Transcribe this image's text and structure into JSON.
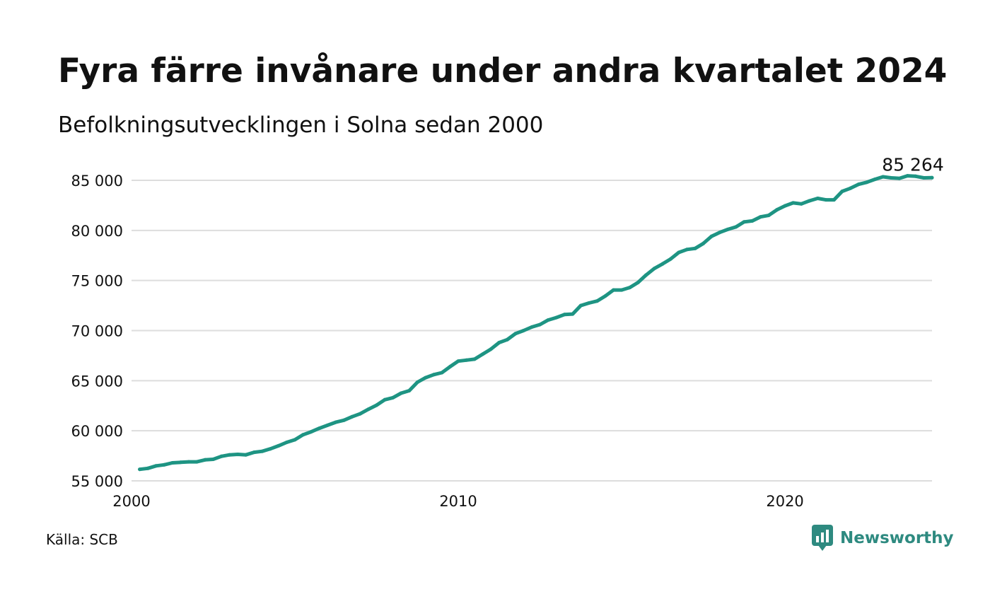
{
  "title": "Fyra färre invånare under andra kvartalet 2024",
  "subtitle": "Befolkningsutvecklingen i Solna sedan 2000",
  "source": "Källa: SCB",
  "brand": {
    "name": "Newsworthy",
    "icon": "newsworthy-logo-icon",
    "color": "#2e8a80"
  },
  "colors": {
    "line": "#1e9483",
    "grid": "#dddddd",
    "text": "#111111"
  },
  "chart_data": {
    "type": "line",
    "xlabel": "",
    "ylabel": "",
    "xlim": [
      2000,
      2024.5
    ],
    "ylim": [
      55000,
      85000
    ],
    "yticks": [
      55000,
      60000,
      65000,
      70000,
      75000,
      80000,
      85000
    ],
    "ytick_labels": [
      "55 000",
      "60 000",
      "65 000",
      "70 000",
      "75 000",
      "80 000",
      "85 000"
    ],
    "xticks": [
      2000,
      2010,
      2020
    ],
    "xtick_labels": [
      "2000",
      "2010",
      "2020"
    ],
    "grid": true,
    "legend": "none",
    "end_label": "85 264",
    "series": [
      {
        "x": [
          2000.25,
          2000.5,
          2000.75,
          2001.0,
          2001.25,
          2001.5,
          2001.75,
          2002.0,
          2002.25,
          2002.5,
          2002.75,
          2003.0,
          2003.25,
          2003.5,
          2003.75,
          2004.0,
          2004.25,
          2004.5,
          2004.75,
          2005.0,
          2005.25,
          2005.5,
          2005.75,
          2006.0,
          2006.25,
          2006.5,
          2006.75,
          2007.0,
          2007.25,
          2007.5,
          2007.75,
          2008.0,
          2008.25,
          2008.5,
          2008.75,
          2009.0,
          2009.25,
          2009.5,
          2009.75,
          2010.0,
          2010.25,
          2010.5,
          2010.75,
          2011.0,
          2011.25,
          2011.5,
          2011.75,
          2012.0,
          2012.25,
          2012.5,
          2012.75,
          2013.0,
          2013.25,
          2013.5,
          2013.75,
          2014.0,
          2014.25,
          2014.5,
          2014.75,
          2015.0,
          2015.25,
          2015.5,
          2015.75,
          2016.0,
          2016.25,
          2016.5,
          2016.75,
          2017.0,
          2017.25,
          2017.5,
          2017.75,
          2018.0,
          2018.25,
          2018.5,
          2018.75,
          2019.0,
          2019.25,
          2019.5,
          2019.75,
          2020.0,
          2020.25,
          2020.5,
          2020.75,
          2021.0,
          2021.25,
          2021.5,
          2021.75,
          2022.0,
          2022.25,
          2022.5,
          2022.75,
          2023.0,
          2023.25,
          2023.5,
          2023.75,
          2024.0,
          2024.25,
          2024.5
        ],
        "values": [
          56150,
          56250,
          56500,
          56600,
          56800,
          56850,
          56900,
          56900,
          57100,
          57150,
          57450,
          57600,
          57650,
          57600,
          57850,
          57950,
          58200,
          58500,
          58850,
          59100,
          59600,
          59900,
          60250,
          60550,
          60850,
          61050,
          61400,
          61700,
          62150,
          62550,
          63100,
          63300,
          63750,
          64000,
          64850,
          65300,
          65600,
          65800,
          66400,
          66950,
          67050,
          67150,
          67650,
          68150,
          68800,
          69100,
          69700,
          70000,
          70350,
          70600,
          71050,
          71300,
          71600,
          71650,
          72500,
          72750,
          72950,
          73450,
          74050,
          74050,
          74300,
          74800,
          75550,
          76200,
          76650,
          77150,
          77800,
          78100,
          78200,
          78700,
          79400,
          79800,
          80100,
          80350,
          80850,
          80950,
          81350,
          81500,
          82050,
          82450,
          82750,
          82650,
          82950,
          83200,
          83050,
          83050,
          83900,
          84200,
          84600,
          84800,
          85100,
          85350,
          85250,
          85200,
          85450,
          85400,
          85250,
          85264
        ]
      }
    ]
  }
}
